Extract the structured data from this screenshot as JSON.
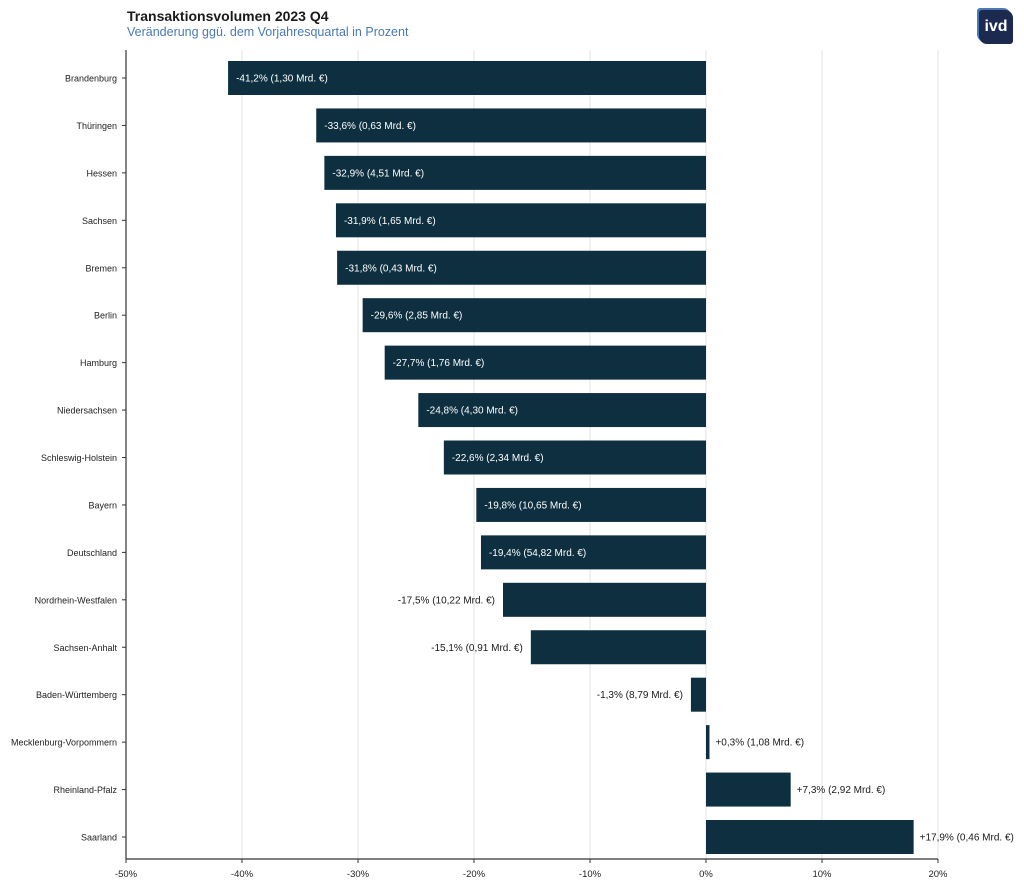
{
  "logo_text": "ivd",
  "chart_data": {
    "type": "bar",
    "orientation": "horizontal",
    "title": "Transaktionsvolumen 2023 Q4",
    "subtitle": "Veränderung ggü. dem Vorjahresquartal in Prozent",
    "categories": [
      "Brandenburg",
      "Thüringen",
      "Hessen",
      "Sachsen",
      "Bremen",
      "Berlin",
      "Hamburg",
      "Niedersachsen",
      "Schleswig-Holstein",
      "Bayern",
      "Deutschland",
      "Nordrhein-Westfalen",
      "Sachsen-Anhalt",
      "Baden-Württemberg",
      "Mecklenburg-Vorpommern",
      "Rheinland-Pfalz",
      "Saarland"
    ],
    "values": [
      -41.2,
      -33.6,
      -32.9,
      -31.9,
      -31.8,
      -29.6,
      -27.7,
      -24.8,
      -22.6,
      -19.8,
      -19.4,
      -17.5,
      -15.1,
      -1.3,
      0.3,
      7.3,
      17.9
    ],
    "data_labels": [
      "-41,2% (1,30 Mrd. €)",
      "-33,6% (0,63 Mrd. €)",
      "-32,9% (4,51 Mrd. €)",
      "-31,9% (1,65 Mrd. €)",
      "-31,8% (0,43 Mrd. €)",
      "-29,6% (2,85 Mrd. €)",
      "-27,7% (1,76 Mrd. €)",
      "-24,8% (4,30 Mrd. €)",
      "-22,6% (2,34 Mrd. €)",
      "-19,8% (10,65 Mrd. €)",
      "-19,4% (54,82 Mrd. €)",
      "-17,5% (10,22 Mrd. €)",
      "-15,1% (0,91 Mrd. €)",
      "-1,3% (8,79 Mrd. €)",
      "+0,3% (1,08 Mrd. €)",
      "+7,3% (2,92 Mrd. €)",
      "+17,9% (0,46 Mrd. €)"
    ],
    "xlim": [
      -50,
      20
    ],
    "xticks": [
      -50,
      -40,
      -30,
      -20,
      -10,
      0,
      10,
      20
    ],
    "xtick_labels": [
      "-50%",
      "-40%",
      "-30%",
      "-20%",
      "-10%",
      "0%",
      "10%",
      "20%"
    ],
    "grid": "vertical",
    "bar_color": "#0d2f3f",
    "inside_label_color": "#ffffff",
    "outside_label_color": "#1a1a1a"
  }
}
